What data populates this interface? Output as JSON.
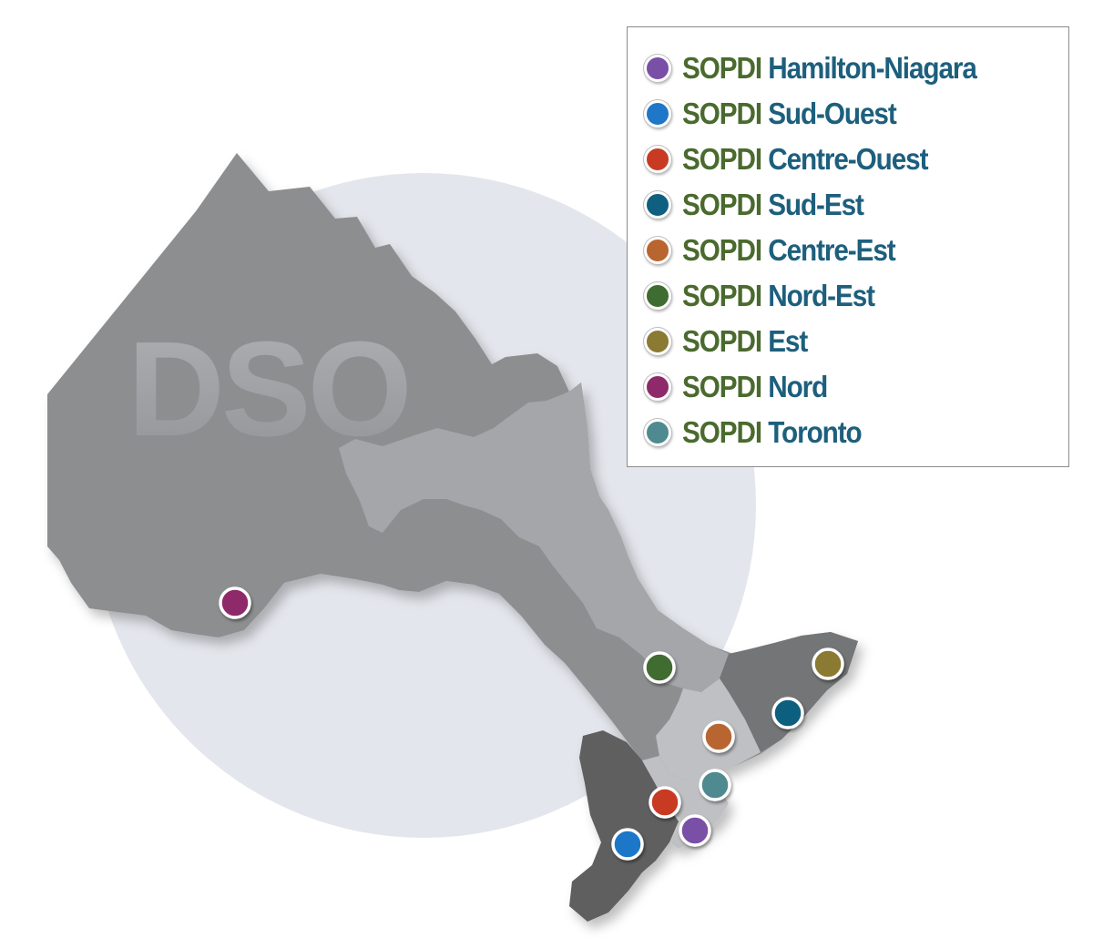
{
  "map": {
    "watermark": "DSO",
    "colors": {
      "background_circle": "#e3e6ec",
      "land_main": "#8d8e90",
      "land_light": "#a4a6a9",
      "land_lighter": "#bfc0c3",
      "land_dark": "#737476",
      "land_darkest": "#5e5f61"
    }
  },
  "legend": {
    "prefix": "SOPDI",
    "items": [
      {
        "id": "hamilton-niagara",
        "name": "Hamilton-Niagara",
        "color": "#7a4fa6"
      },
      {
        "id": "sud-ouest",
        "name": "Sud-Ouest",
        "color": "#1f77c8"
      },
      {
        "id": "centre-ouest",
        "name": "Centre-Ouest",
        "color": "#c83b22"
      },
      {
        "id": "sud-est",
        "name": "Sud-Est",
        "color": "#0e5f80"
      },
      {
        "id": "centre-est",
        "name": "Centre-Est",
        "color": "#b96530"
      },
      {
        "id": "nord-est",
        "name": "Nord-Est",
        "color": "#3f6c30"
      },
      {
        "id": "est",
        "name": "Est",
        "color": "#8a7a32"
      },
      {
        "id": "nord",
        "name": "Nord",
        "color": "#8f2a6a"
      },
      {
        "id": "toronto",
        "name": "Toronto",
        "color": "#4f8a90"
      }
    ]
  },
  "markers": [
    {
      "region": "nord"
    },
    {
      "region": "nord-est"
    },
    {
      "region": "est"
    },
    {
      "region": "sud-est"
    },
    {
      "region": "centre-est"
    },
    {
      "region": "toronto"
    },
    {
      "region": "centre-ouest"
    },
    {
      "region": "hamilton-niagara"
    },
    {
      "region": "sud-ouest"
    }
  ]
}
